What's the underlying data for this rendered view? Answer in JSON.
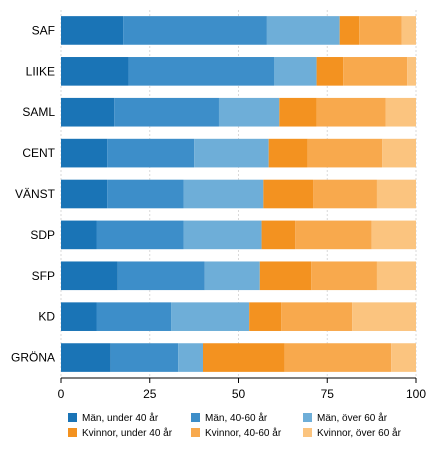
{
  "chart_data": {
    "type": "bar",
    "orientation": "horizontal",
    "stacked": true,
    "title": "",
    "xlabel": "",
    "ylabel": "",
    "xlim": [
      0,
      100
    ],
    "xticks": [
      0,
      25,
      50,
      75,
      100
    ],
    "grid": "vertical",
    "legend_position": "bottom",
    "categories": [
      "SAF",
      "LIIKE",
      "SAML",
      "CENT",
      "VÄNST",
      "SDP",
      "SFP",
      "KD",
      "GRÖNA"
    ],
    "series": [
      {
        "name": "Män, under 40 år",
        "color": "#1a74b6",
        "values": [
          17.5,
          19,
          15,
          13,
          13,
          10,
          16,
          10,
          14
        ]
      },
      {
        "name": "Män, 40-60 år",
        "color": "#3d8ec9",
        "values": [
          40.5,
          41,
          29.5,
          24.5,
          21.5,
          24.5,
          24.5,
          21,
          19
        ]
      },
      {
        "name": "Män, över 60 år",
        "color": "#6eaed8",
        "values": [
          20.5,
          12,
          17,
          21,
          22.5,
          22,
          15.5,
          22,
          7
        ]
      },
      {
        "name": "Kvinnor, under 40 år",
        "color": "#f39220",
        "values": [
          5.5,
          7.5,
          10.5,
          11,
          14,
          9.5,
          14.5,
          9,
          23
        ]
      },
      {
        "name": "Kvinnor, 40-60 år",
        "color": "#f8a94d",
        "values": [
          12,
          18,
          19.5,
          21,
          18,
          21.5,
          18.5,
          20,
          30
        ]
      },
      {
        "name": "Kvinnor, över 60 år",
        "color": "#fbc47f",
        "values": [
          4,
          2.5,
          8.5,
          9.5,
          11,
          12.5,
          11,
          18,
          7
        ]
      }
    ]
  }
}
